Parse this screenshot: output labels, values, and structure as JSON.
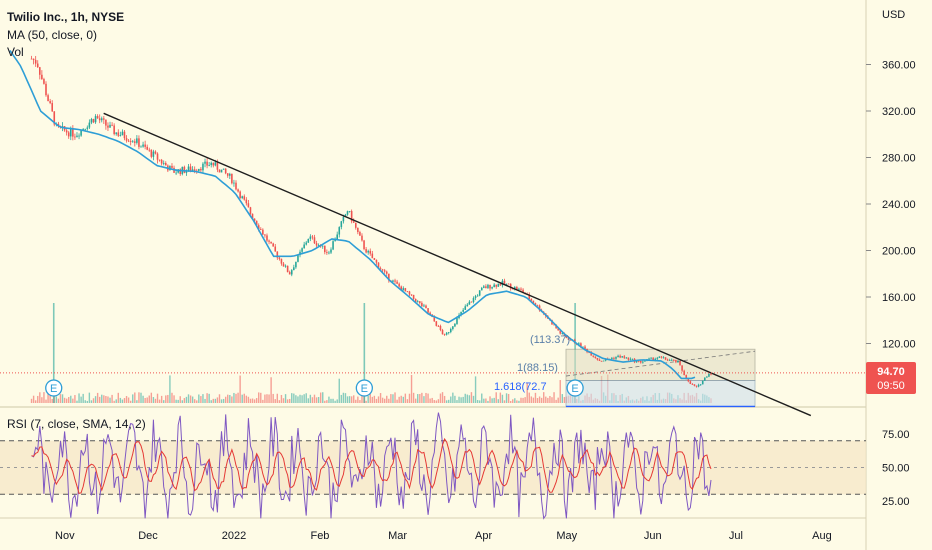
{
  "header": {
    "symbol_line": "Twilio Inc., 1h, NYSE",
    "ma_line": "MA (50, close, 0)",
    "vol_line": "Vol",
    "rsi_line": "RSI (7, close, SMA, 14, 2)",
    "currency": "USD"
  },
  "price_tag": {
    "value": "94.70",
    "countdown": "09:50",
    "color": "#ef5350"
  },
  "fib_labels": {
    "top": "(113.37)",
    "mid": "1(88.15)",
    "low": "1.618(72.7"
  },
  "earnings_marker": "E",
  "colors": {
    "background": "#fefbe6",
    "up": "#26a69a",
    "down": "#ef5350",
    "ma": "#2e9ed6",
    "trendline": "#1e1e1e",
    "rsi": "#7e57c2",
    "rsi_ma": "#e53935",
    "fib": "#5a7fa8"
  },
  "chart_data": [
    {
      "type": "line",
      "title": "Twilio Inc., 1h, NYSE",
      "y_unit": "USD",
      "y_ticks": [
        120,
        160,
        200,
        240,
        280,
        320,
        360
      ],
      "y_tick_labels": [
        "120.00",
        "160.00",
        "200.00",
        "240.00",
        "280.00",
        "320.00",
        "360.00"
      ],
      "ylim": [
        55,
        400
      ],
      "x_tick_labels": [
        "Nov",
        "Dec",
        "2022",
        "Feb",
        "Mar",
        "Apr",
        "May",
        "Jun",
        "Jul",
        "Aug"
      ],
      "x": [
        "2021-10-18",
        "2021-10-22",
        "2021-10-29",
        "2021-11-05",
        "2021-11-12",
        "2021-11-19",
        "2021-11-26",
        "2021-12-03",
        "2021-12-10",
        "2021-12-17",
        "2021-12-24",
        "2021-12-31",
        "2022-01-07",
        "2022-01-14",
        "2022-01-21",
        "2022-01-28",
        "2022-02-04",
        "2022-02-11",
        "2022-02-17",
        "2022-02-25",
        "2022-03-04",
        "2022-03-11",
        "2022-03-18",
        "2022-03-25",
        "2022-04-01",
        "2022-04-08",
        "2022-04-15",
        "2022-04-22",
        "2022-04-29",
        "2022-05-06",
        "2022-05-13",
        "2022-05-20",
        "2022-05-27",
        "2022-06-03",
        "2022-06-10",
        "2022-06-14",
        "2022-06-17",
        "2022-06-21",
        "2022-06-22"
      ],
      "series": [
        {
          "role": "price",
          "values": [
            368,
            362,
            305,
            300,
            315,
            302,
            295,
            282,
            268,
            270,
            275,
            262,
            232,
            205,
            180,
            212,
            198,
            235,
            202,
            178,
            164,
            150,
            126,
            150,
            168,
            172,
            165,
            148,
            128,
            118,
            105,
            109,
            104,
            108,
            104,
            86,
            82,
            94,
            94.7
          ]
        },
        {
          "role": "ma",
          "values": [
            372,
            358,
            320,
            306,
            304,
            300,
            294,
            285,
            273,
            269,
            268,
            264,
            250,
            225,
            195,
            195,
            200,
            210,
            208,
            192,
            174,
            160,
            145,
            138,
            148,
            162,
            165,
            160,
            145,
            128,
            115,
            107,
            104,
            106,
            105,
            98,
            90,
            90,
            91
          ]
        }
      ],
      "earnings_dates": [
        "2021-10-28",
        "2022-02-17",
        "2022-05-04"
      ],
      "trendline": {
        "from": [
          "2021-11-15",
          318
        ],
        "to": [
          "2022-07-28",
          58
        ]
      },
      "fib_levels": [
        {
          "value": 113.37,
          "label": "(113.37)"
        },
        {
          "value": 88.15,
          "label": "1(88.15)"
        },
        {
          "value": 72.7,
          "label": "1.618(72.7"
        }
      ],
      "last_price": 94.7
    },
    {
      "type": "bar",
      "title": "Vol",
      "note": "hourly volume histogram at the bottom of the price pane, colored up/down"
    },
    {
      "type": "line",
      "title": "RSI (7, close, SMA, 14, 2)",
      "y_ticks": [
        25,
        50,
        75
      ],
      "y_tick_labels": [
        "25.00",
        "50.00",
        "75.00"
      ],
      "ylim": [
        0,
        100
      ],
      "band": [
        30,
        70
      ],
      "midline": 50,
      "series": [
        {
          "role": "rsi",
          "note": "oscillates roughly between 15 and 90 across the whole range"
        },
        {
          "role": "rsi_ma"
        }
      ]
    }
  ]
}
